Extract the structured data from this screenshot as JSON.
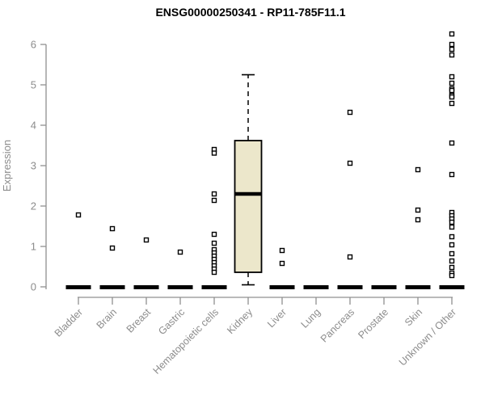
{
  "chart_data": {
    "type": "boxplot",
    "title": "ENSG00000250341 - RP11-785F11.1",
    "ylabel": "Expression",
    "xlabel": "",
    "ylim": [
      0,
      6.5
    ],
    "yticks": [
      0,
      1,
      2,
      3,
      4,
      5,
      6
    ],
    "grid": false,
    "legend": "none",
    "categories": [
      "Bladder",
      "Brain",
      "Breast",
      "Gastric",
      "Hematopoietic cells",
      "Kidney",
      "Liver",
      "Lung",
      "Pancreas",
      "Prostate",
      "Skin",
      "Unknown / Other"
    ],
    "series": [
      {
        "name": "Bladder",
        "baseline_bar_at_zero": true,
        "points": [
          1.78
        ]
      },
      {
        "name": "Brain",
        "baseline_bar_at_zero": true,
        "points": [
          1.44,
          0.96
        ]
      },
      {
        "name": "Breast",
        "baseline_bar_at_zero": true,
        "points": [
          1.16
        ]
      },
      {
        "name": "Gastric",
        "baseline_bar_at_zero": true,
        "points": [
          0.86
        ]
      },
      {
        "name": "Hematopoietic cells",
        "baseline_bar_at_zero": true,
        "points": [
          3.4,
          3.31,
          2.3,
          2.14,
          1.3,
          1.08,
          0.92,
          0.84,
          0.76,
          0.68,
          0.6,
          0.52,
          0.44,
          0.36
        ]
      },
      {
        "name": "Kidney",
        "baseline_bar_at_zero": false,
        "points": [],
        "box": {
          "whisker_high": 5.25,
          "q3": 3.62,
          "median": 2.3,
          "q1": 0.36,
          "whisker_low": 0.05
        }
      },
      {
        "name": "Liver",
        "baseline_bar_at_zero": true,
        "points": [
          0.9,
          0.58
        ]
      },
      {
        "name": "Lung",
        "baseline_bar_at_zero": true,
        "points": []
      },
      {
        "name": "Pancreas",
        "baseline_bar_at_zero": true,
        "points": [
          4.32,
          3.06,
          0.74
        ]
      },
      {
        "name": "Prostate",
        "baseline_bar_at_zero": true,
        "points": []
      },
      {
        "name": "Skin",
        "baseline_bar_at_zero": true,
        "points": [
          2.9,
          1.9,
          1.66
        ]
      },
      {
        "name": "Unknown / Other",
        "baseline_bar_at_zero": true,
        "points": [
          6.26,
          6.0,
          5.88,
          5.74,
          5.2,
          5.04,
          4.9,
          4.86,
          4.74,
          4.7,
          4.54,
          3.56,
          2.78,
          1.84,
          1.76,
          1.68,
          1.6,
          1.48,
          1.24,
          1.04,
          0.82,
          0.64,
          0.48,
          0.34,
          0.28
        ]
      }
    ],
    "colors": {
      "box_fill": "#ece7cb",
      "box_stroke": "#000000",
      "point_stroke": "#000000",
      "point_fill": "#ffffff",
      "zero_bar": "#000000",
      "axis_line": "#909090",
      "tick_label": "#8c8c8c",
      "title": "#000000",
      "background": "#ffffff"
    }
  }
}
